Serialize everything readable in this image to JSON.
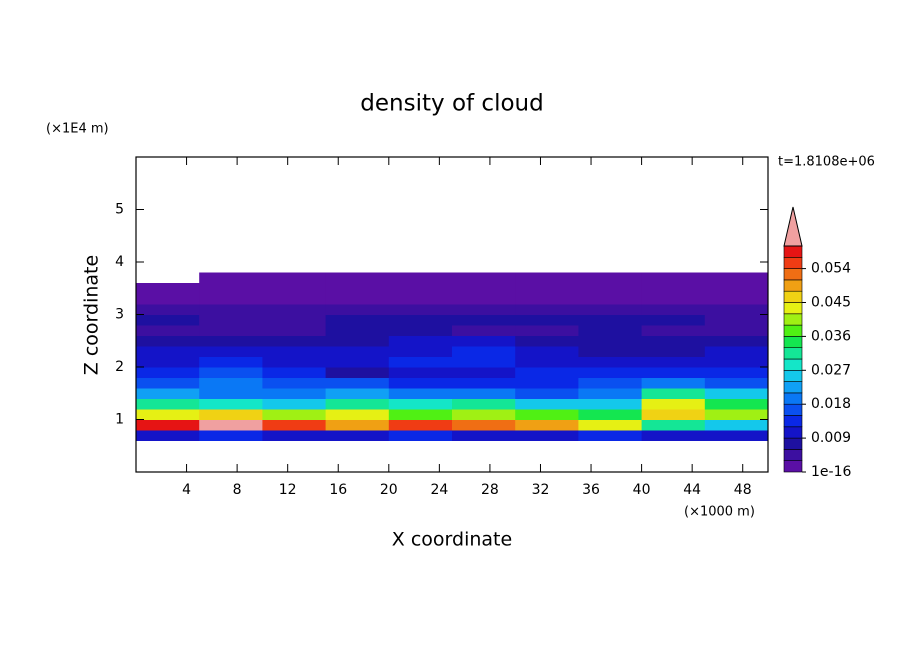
{
  "chart_data": {
    "type": "contour",
    "title": "density of cloud",
    "x_label": "X coordinate",
    "y_label": "Z coordinate",
    "x_unit": "(×1000 m)",
    "y_unit": "(×1E4 m)",
    "annotation": "t=1.8108e+06",
    "xlim": [
      0,
      50
    ],
    "ylim": [
      0,
      6
    ],
    "xticks": [
      4,
      8,
      12,
      16,
      20,
      24,
      28,
      32,
      36,
      40,
      44,
      48
    ],
    "yticks": [
      1,
      2,
      3,
      4,
      5
    ],
    "x_edges": [
      0,
      5,
      10,
      15,
      20,
      25,
      30,
      35,
      40,
      45,
      50
    ],
    "z_edges": [
      0.6,
      0.8,
      1.0,
      1.2,
      1.4,
      1.6,
      1.8,
      2.0,
      2.2,
      2.4,
      2.6,
      2.8,
      3.0,
      3.2,
      3.4,
      3.6,
      3.8
    ],
    "values": [
      [
        0.011,
        0.012,
        0.01,
        0.011,
        0.012,
        0.011,
        0.01,
        0.012,
        0.011,
        0.01
      ],
      [
        0.058,
        0.062,
        0.055,
        0.05,
        0.056,
        0.052,
        0.05,
        0.042,
        0.03,
        0.025
      ],
      [
        0.042,
        0.045,
        0.04,
        0.044,
        0.038,
        0.041,
        0.036,
        0.035,
        0.045,
        0.04
      ],
      [
        0.03,
        0.028,
        0.026,
        0.03,
        0.027,
        0.031,
        0.024,
        0.025,
        0.042,
        0.035
      ],
      [
        0.021,
        0.02,
        0.019,
        0.022,
        0.02,
        0.018,
        0.016,
        0.02,
        0.03,
        0.026
      ],
      [
        0.017,
        0.018,
        0.016,
        0.015,
        0.014,
        0.013,
        0.013,
        0.015,
        0.019,
        0.017
      ],
      [
        0.014,
        0.015,
        0.013,
        0.008,
        0.01,
        0.011,
        0.012,
        0.013,
        0.012,
        0.014
      ],
      [
        0.011,
        0.012,
        0.011,
        0.009,
        0.012,
        0.013,
        0.011,
        0.009,
        0.01,
        0.011
      ],
      [
        0.009,
        0.01,
        0.009,
        0.01,
        0.011,
        0.012,
        0.009,
        0.008,
        0.008,
        0.009
      ],
      [
        0.007,
        0.008,
        0.007,
        0.008,
        0.009,
        0.009,
        0.007,
        0.007,
        0.007,
        0.008
      ],
      [
        0.005,
        0.004,
        0.005,
        0.006,
        0.006,
        0.005,
        0.005,
        0.006,
        0.004,
        0.005
      ],
      [
        0.006,
        0.005,
        0.005,
        0.007,
        0.006,
        0.006,
        0.007,
        0.006,
        0.006,
        0.005
      ],
      [
        0.003,
        0.004,
        0.003,
        0.004,
        0.003,
        0.003,
        0.004,
        0.003,
        0.003,
        0.004
      ],
      [
        0.002,
        0.002,
        0.002,
        0.002,
        0.002,
        0.002,
        0.002,
        0.002,
        0.002,
        0.002
      ],
      [
        0.001,
        0.001,
        0.001,
        0.001,
        0.001,
        0.001,
        0.001,
        0.001,
        0.001,
        0.001
      ],
      [
        null,
        0.001,
        0.001,
        0.001,
        0.001,
        0.001,
        0.001,
        0.001,
        0.001,
        0.001
      ]
    ],
    "colorbar": {
      "levels": [
        1e-16,
        0.003,
        0.006,
        0.009,
        0.012,
        0.015,
        0.018,
        0.021,
        0.024,
        0.027,
        0.03,
        0.033,
        0.036,
        0.039,
        0.042,
        0.045,
        0.048,
        0.051,
        0.054,
        0.057,
        0.06
      ],
      "ticks": [
        1e-16,
        0.009,
        0.018,
        0.027,
        0.036,
        0.045,
        0.054
      ],
      "colors": [
        "#5a0fa5",
        "#3c0fa0",
        "#1e10a0",
        "#1414c8",
        "#0a28e6",
        "#0a50f0",
        "#0a78f5",
        "#10a0f5",
        "#14c8eb",
        "#14e6c8",
        "#14e696",
        "#14e650",
        "#50f014",
        "#a0f014",
        "#e6f014",
        "#f0d214",
        "#f0a014",
        "#f06e14",
        "#f03c14",
        "#e61414"
      ],
      "extend_color": "#f0a0a0"
    }
  }
}
